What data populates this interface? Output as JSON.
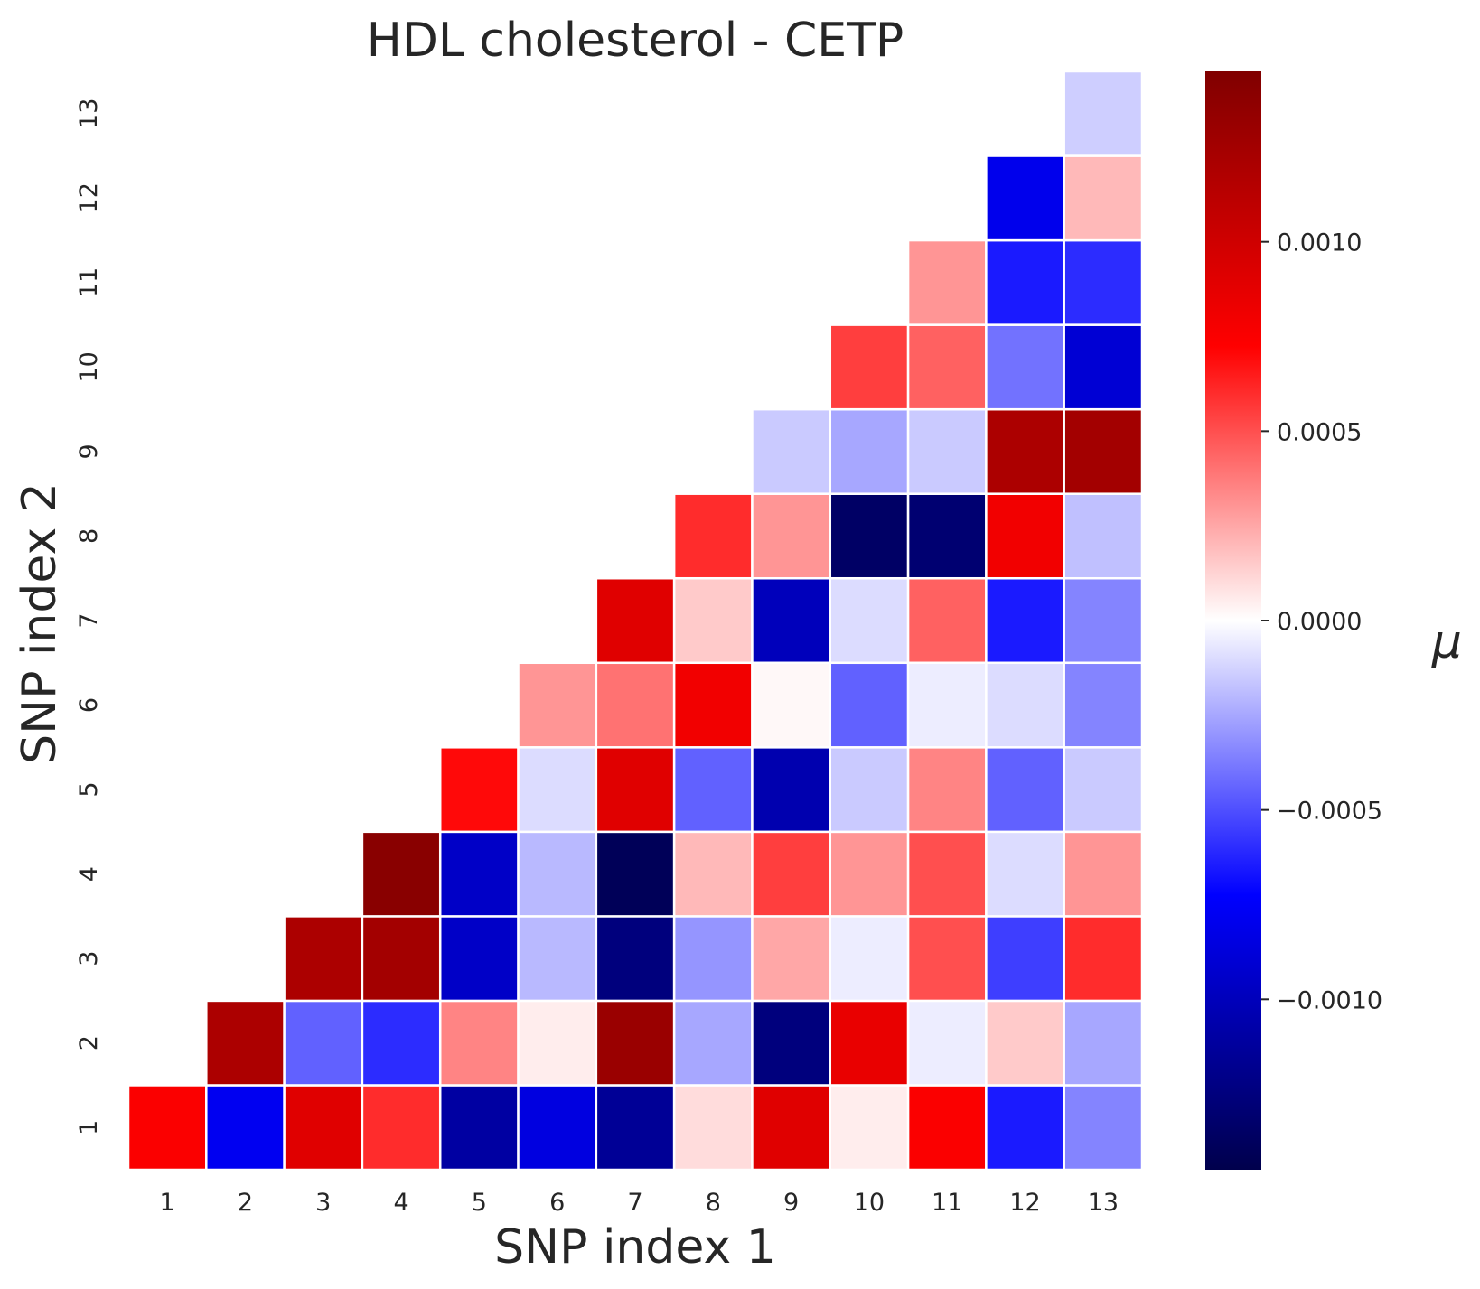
{
  "chart_data": {
    "type": "heatmap",
    "title": "HDL cholesterol - CETP",
    "xlabel": "SNP index 1",
    "ylabel": "SNP index 2",
    "x_categories": [
      "1",
      "2",
      "3",
      "4",
      "5",
      "6",
      "7",
      "8",
      "9",
      "10",
      "11",
      "12",
      "13"
    ],
    "y_categories": [
      "1",
      "2",
      "3",
      "4",
      "5",
      "6",
      "7",
      "8",
      "9",
      "10",
      "11",
      "12",
      "13"
    ],
    "colorbar": {
      "label": "μ",
      "colormap": "seismic",
      "vmin": -0.00145,
      "vmax": 0.00145,
      "ticks": [
        0.001,
        0.0005,
        0.0,
        -0.0005,
        -0.001
      ],
      "tick_labels": [
        "0.0010",
        "0.0005",
        "0.0000",
        "−0.0005",
        "−0.0010"
      ]
    },
    "grid": false,
    "cell_border_color": "#ffffff",
    "values": [
      [
        0.00075,
        -0.00078,
        0.0009,
        0.0006,
        -0.0011,
        -0.00085,
        -0.00115,
        0.0001,
        0.0009,
        5e-05,
        0.00075,
        -0.00065,
        -0.00035
      ],
      [
        null,
        0.0012,
        -0.00045,
        -0.0006,
        0.00035,
        5e-05,
        0.0013,
        -0.00025,
        -0.00125,
        0.00085,
        -5e-05,
        0.00015,
        -0.00025
      ],
      [
        null,
        null,
        0.0012,
        0.00125,
        -0.00095,
        -0.0002,
        -0.00125,
        -0.0003,
        0.00025,
        -5e-05,
        0.0005,
        -0.00055,
        0.0006
      ],
      [
        null,
        null,
        null,
        0.0014,
        -0.00095,
        -0.0002,
        -0.0014,
        0.0002,
        0.00055,
        0.0003,
        0.0005,
        -0.0001,
        0.0003
      ],
      [
        null,
        null,
        null,
        null,
        0.0007,
        -0.0001,
        0.0009,
        -0.00045,
        -0.00105,
        -0.00015,
        0.00035,
        -0.00045,
        -0.00015
      ],
      [
        null,
        null,
        null,
        null,
        null,
        0.0003,
        0.0004,
        0.0008,
        2e-05,
        -0.00045,
        -5e-05,
        -0.0001,
        -0.00035
      ],
      [
        null,
        null,
        null,
        null,
        null,
        null,
        0.0009,
        0.00015,
        -0.001,
        -0.0001,
        0.00045,
        -0.00065,
        -0.00035
      ],
      [
        null,
        null,
        null,
        null,
        null,
        null,
        null,
        0.0006,
        0.0003,
        -0.00135,
        -0.0013,
        0.0008,
        -0.00018
      ],
      [
        null,
        null,
        null,
        null,
        null,
        null,
        null,
        null,
        -0.00015,
        -0.00025,
        -0.00015,
        0.0012,
        0.00125
      ],
      [
        null,
        null,
        null,
        null,
        null,
        null,
        null,
        null,
        null,
        0.00055,
        0.00045,
        -0.0004,
        -0.0009
      ],
      [
        null,
        null,
        null,
        null,
        null,
        null,
        null,
        null,
        null,
        null,
        0.0003,
        -0.00065,
        -0.0006
      ],
      [
        null,
        null,
        null,
        null,
        null,
        null,
        null,
        null,
        null,
        null,
        null,
        -0.0008,
        0.0002
      ],
      [
        null,
        null,
        null,
        null,
        null,
        null,
        null,
        null,
        null,
        null,
        null,
        null,
        -0.00014
      ]
    ]
  }
}
